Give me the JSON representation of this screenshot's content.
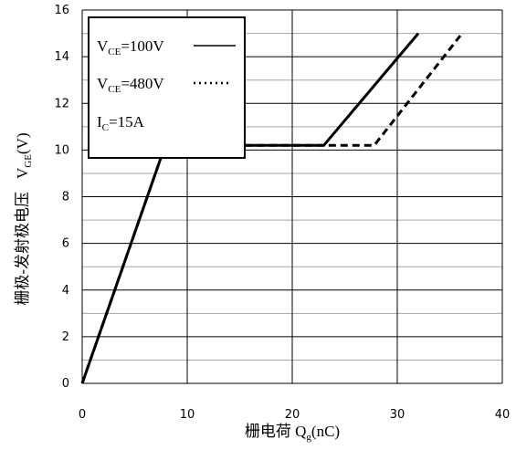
{
  "chart_data": {
    "type": "line",
    "xlabel": {
      "main": "栅电荷 Q",
      "sub": "g",
      "unit": "(nC)"
    },
    "ylabel": {
      "main": "栅极-发射极电压",
      "symbol": "V",
      "sub": "GE",
      "unit": "(V)"
    },
    "xlim": [
      0,
      40
    ],
    "ylim": [
      0,
      16
    ],
    "x_ticks": [
      "0",
      "10",
      "20",
      "30",
      "40"
    ],
    "y_ticks": [
      "0",
      "2",
      "4",
      "6",
      "8",
      "10",
      "12",
      "14",
      "16"
    ],
    "grid": true,
    "legend_position": "top-left",
    "series": [
      {
        "name": "VCE=100V",
        "style": "solid",
        "color": "#000000",
        "points": [
          [
            0,
            0
          ],
          [
            7.9,
            10.2
          ],
          [
            23,
            10.2
          ],
          [
            32,
            15
          ]
        ]
      },
      {
        "name": "VCE=480V",
        "style": "dashed",
        "color": "#000000",
        "points": [
          [
            0,
            0
          ],
          [
            7.9,
            10.2
          ],
          [
            27.8,
            10.2
          ],
          [
            36,
            14.9
          ]
        ]
      }
    ],
    "legend": [
      {
        "main": "V",
        "sub": "CE",
        "rest": "=100V"
      },
      {
        "main": "V",
        "sub": "CE",
        "rest": "=480V"
      },
      {
        "main": "I",
        "sub": "C",
        "rest": "=15A"
      }
    ]
  }
}
